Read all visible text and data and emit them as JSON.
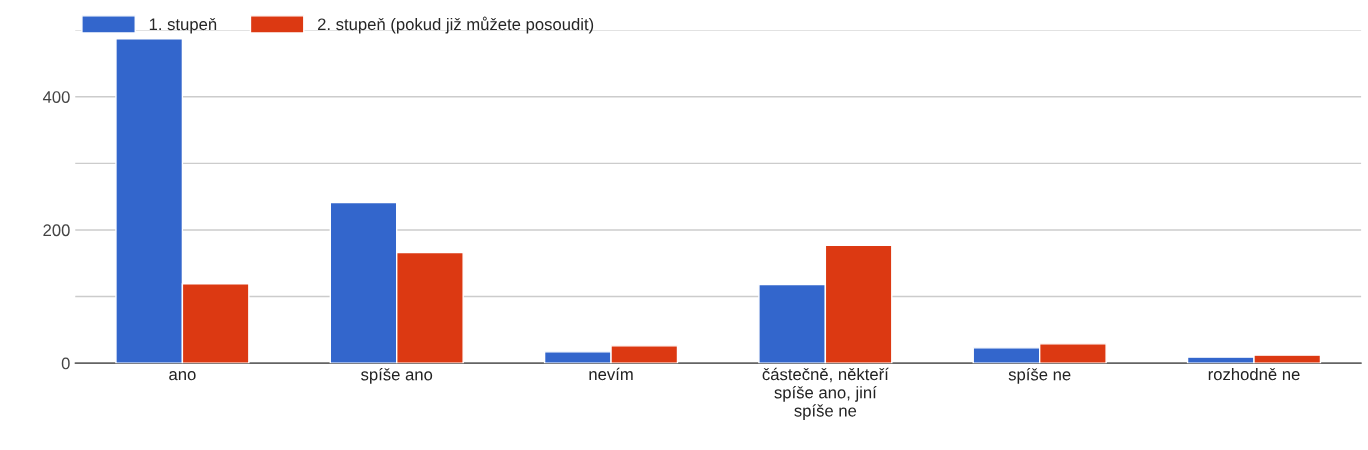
{
  "chart_data": {
    "type": "bar",
    "categories": [
      "ano",
      "spíše ano",
      "nevím",
      "částečně, někteří spíše ano, jiní spíše ne",
      "spíše ne",
      "rozhodně ne"
    ],
    "series": [
      {
        "name": "1. stupeň",
        "color": "#3366cc",
        "values": [
          487,
          241,
          17,
          118,
          23,
          9
        ]
      },
      {
        "name": "2. stupeň (pokud již můžete posoudit)",
        "color": "#dc3912",
        "values": [
          119,
          166,
          26,
          177,
          29,
          12
        ]
      }
    ],
    "ylim": [
      0,
      500
    ],
    "yticks": [
      0,
      {
        "value": 100,
        "label": null
      },
      200,
      {
        "value": 300,
        "label": null
      },
      400,
      {
        "value": 500,
        "label": null
      }
    ],
    "grid": "y",
    "legend": "top left"
  }
}
